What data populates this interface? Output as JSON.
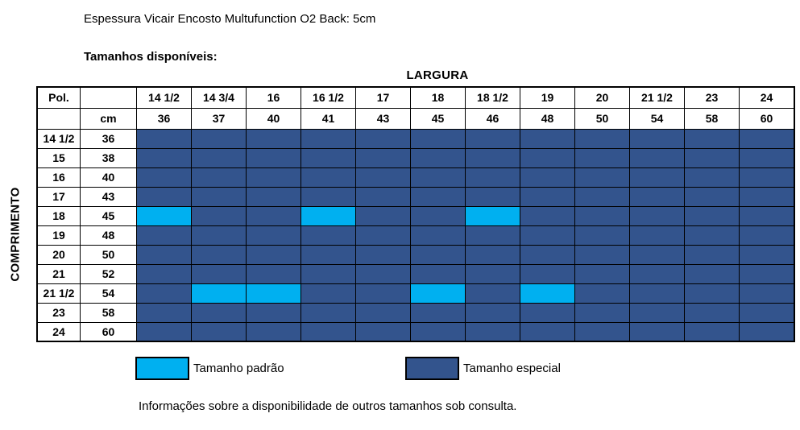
{
  "page": {
    "title": "Espessura Vicair Encosto Multufunction O2 Back: 5cm",
    "subtitle": "Tamanhos disponíveis:",
    "footer": "Informações sobre a disponibilidade de outros tamanhos sob consulta."
  },
  "colors": {
    "standard": "#00B0F0",
    "special": "#33548D",
    "border": "#000000"
  },
  "table": {
    "col_group_label": "LARGURA",
    "row_group_label": "COMPRIMENTO",
    "header": {
      "pol_label": "Pol.",
      "cm_label": "cm",
      "inches": [
        "14 1/2",
        "14 3/4",
        "16",
        "16 1/2",
        "17",
        "18",
        "18 1/2",
        "19",
        "20",
        "21 1/2",
        "23",
        "24"
      ],
      "cm": [
        "36",
        "37",
        "40",
        "41",
        "43",
        "45",
        "46",
        "48",
        "50",
        "54",
        "58",
        "60"
      ]
    },
    "cell_legend": {
      "P": "Tamanho padrão",
      "E": "Tamanho especial"
    },
    "rows": [
      {
        "pol": "14 1/2",
        "cm": "36",
        "cells": [
          "E",
          "E",
          "E",
          "E",
          "E",
          "E",
          "E",
          "E",
          "E",
          "E",
          "E",
          "E"
        ]
      },
      {
        "pol": "15",
        "cm": "38",
        "cells": [
          "E",
          "E",
          "E",
          "E",
          "E",
          "E",
          "E",
          "E",
          "E",
          "E",
          "E",
          "E"
        ]
      },
      {
        "pol": "16",
        "cm": "40",
        "cells": [
          "E",
          "E",
          "E",
          "E",
          "E",
          "E",
          "E",
          "E",
          "E",
          "E",
          "E",
          "E"
        ]
      },
      {
        "pol": "17",
        "cm": "43",
        "cells": [
          "E",
          "E",
          "E",
          "E",
          "E",
          "E",
          "E",
          "E",
          "E",
          "E",
          "E",
          "E"
        ]
      },
      {
        "pol": "18",
        "cm": "45",
        "cells": [
          "P",
          "E",
          "E",
          "P",
          "E",
          "E",
          "P",
          "E",
          "E",
          "E",
          "E",
          "E"
        ]
      },
      {
        "pol": "19",
        "cm": "48",
        "cells": [
          "E",
          "E",
          "E",
          "E",
          "E",
          "E",
          "E",
          "E",
          "E",
          "E",
          "E",
          "E"
        ]
      },
      {
        "pol": "20",
        "cm": "50",
        "cells": [
          "E",
          "E",
          "E",
          "E",
          "E",
          "E",
          "E",
          "E",
          "E",
          "E",
          "E",
          "E"
        ]
      },
      {
        "pol": "21",
        "cm": "52",
        "cells": [
          "E",
          "E",
          "E",
          "E",
          "E",
          "E",
          "E",
          "E",
          "E",
          "E",
          "E",
          "E"
        ]
      },
      {
        "pol": "21 1/2",
        "cm": "54",
        "cells": [
          "E",
          "P",
          "P",
          "E",
          "E",
          "P",
          "E",
          "P",
          "E",
          "E",
          "E",
          "E"
        ]
      },
      {
        "pol": "23",
        "cm": "58",
        "cells": [
          "E",
          "E",
          "E",
          "E",
          "E",
          "E",
          "E",
          "E",
          "E",
          "E",
          "E",
          "E"
        ]
      },
      {
        "pol": "24",
        "cm": "60",
        "cells": [
          "E",
          "E",
          "E",
          "E",
          "E",
          "E",
          "E",
          "E",
          "E",
          "E",
          "E",
          "E"
        ]
      }
    ]
  },
  "legend": [
    {
      "key": "P",
      "label": "Tamanho padrão"
    },
    {
      "key": "E",
      "label": "Tamanho especial"
    }
  ]
}
